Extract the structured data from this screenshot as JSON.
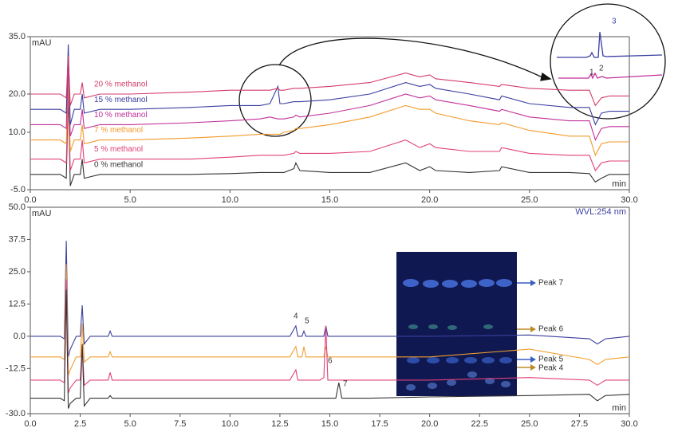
{
  "chart_data": [
    {
      "type": "line",
      "x_label": "min",
      "y_label": "mAU",
      "xlim": [
        0,
        30
      ],
      "ylim": [
        -5,
        35
      ],
      "xticks": [
        {
          "value": 0,
          "label": "0.0"
        },
        {
          "value": 5,
          "label": "5.0"
        },
        {
          "value": 10,
          "label": "10.0"
        },
        {
          "value": 15,
          "label": "15.0"
        },
        {
          "value": 20,
          "label": "20.0"
        },
        {
          "value": 25,
          "label": "25.0"
        },
        {
          "value": 30,
          "label": "30.0"
        }
      ],
      "yticks": [
        {
          "value": -5,
          "label": "-5.0"
        },
        {
          "value": 10,
          "label": "10.0"
        },
        {
          "value": 20,
          "label": "20.0"
        },
        {
          "value": 35,
          "label": "35.0"
        }
      ],
      "legend": "inline",
      "x": [
        0,
        1.5,
        1.8,
        1.9,
        2.0,
        2.2,
        2.5,
        2.6,
        2.7,
        3.5,
        5,
        8,
        10,
        11.5,
        12.0,
        12.4,
        12.5,
        12.7,
        13.2,
        13.3,
        13.5,
        15,
        17,
        18.8,
        19.5,
        20.0,
        20.3,
        22,
        23.5,
        23.6,
        25,
        27,
        28.0,
        28.3,
        28.6,
        29,
        30
      ],
      "series": [
        {
          "name": "0 % methanol",
          "color": "#333333",
          "values": [
            -1,
            -1,
            -2,
            20,
            -4,
            -1,
            -1,
            3,
            -2,
            -1,
            -1,
            -1,
            -0.8,
            -0.5,
            -0.5,
            -0.5,
            -0.5,
            -0.5,
            0.5,
            2,
            0,
            -0.5,
            -0.5,
            2,
            0,
            1,
            0,
            -0.5,
            0,
            1,
            -0.5,
            -0.5,
            -0.8,
            -3,
            -2,
            -1,
            -1
          ]
        },
        {
          "name": "5 % methanol",
          "color": "#e0407a",
          "values": [
            3,
            3,
            2,
            22,
            0,
            3,
            3,
            8,
            2,
            3,
            3,
            3,
            3.5,
            4,
            4,
            4,
            4,
            4,
            4.5,
            5,
            4.5,
            4.5,
            5,
            8,
            6,
            7,
            6,
            5,
            5,
            6,
            4.5,
            4,
            4,
            0,
            2,
            2.5,
            2.5
          ]
        },
        {
          "name": "7 % methanol",
          "color": "#f39a2b",
          "values": [
            8,
            8,
            7,
            25,
            5,
            8,
            8,
            12,
            7,
            8,
            8,
            8.5,
            9,
            9.5,
            9.5,
            9.5,
            9.5,
            10,
            10.5,
            11,
            11,
            12,
            14,
            17,
            16,
            16,
            15,
            13,
            12,
            12.5,
            10.5,
            9,
            9,
            4,
            7,
            7.5,
            7.5
          ]
        },
        {
          "name": "10 % methanol",
          "color": "#c0309a",
          "values": [
            12,
            12,
            11,
            28,
            9,
            12,
            12,
            16,
            11,
            12,
            12,
            12.5,
            13,
            13.5,
            14,
            13.5,
            13.5,
            13.5,
            14,
            14.5,
            14,
            15,
            17,
            20,
            19,
            19.5,
            18.5,
            17,
            15.5,
            16,
            14,
            13,
            13,
            8,
            11,
            11.5,
            11.5
          ]
        },
        {
          "name": "15 % methanol",
          "color": "#3a3fa0",
          "values": [
            16,
            16,
            15,
            33,
            12,
            16,
            16,
            20,
            15,
            16,
            16,
            16.5,
            17,
            17,
            17.5,
            22,
            17.5,
            17.5,
            18,
            18,
            18,
            18.5,
            20,
            23,
            22,
            22.5,
            21.5,
            20,
            18.5,
            19.5,
            17.5,
            16.5,
            16.5,
            12,
            15,
            15.5,
            15.5
          ]
        },
        {
          "name": "20 % methanol",
          "color": "#d43d6a",
          "values": [
            20,
            20,
            19,
            30,
            17,
            20,
            20,
            23,
            19,
            20,
            20,
            20.5,
            21,
            21,
            21,
            21.5,
            21,
            21,
            21.5,
            21.5,
            21.5,
            22,
            23,
            25.5,
            24.5,
            25,
            24,
            23,
            22,
            22.5,
            21.5,
            21,
            21,
            17,
            19,
            19.5,
            19.5
          ]
        }
      ],
      "inset_labels": [
        "1",
        "2",
        "3"
      ]
    },
    {
      "type": "line",
      "x_label": "min",
      "y_label": "mAU",
      "annotation": "WVL:254 nm",
      "xlim": [
        0,
        30
      ],
      "ylim": [
        -30,
        50
      ],
      "xticks": [
        {
          "value": 0,
          "label": "0.0"
        },
        2.5,
        {
          "value": 5,
          "label": "5.0"
        },
        7.5,
        {
          "value": 10,
          "label": "10.0"
        },
        12.5,
        {
          "value": 15,
          "label": "15.0"
        },
        17.5,
        {
          "value": 20,
          "label": "20.0"
        },
        22.5,
        {
          "value": 25,
          "label": "25.0"
        },
        27.5,
        {
          "value": 30,
          "label": "30.0"
        }
      ],
      "yticks": [
        {
          "value": -30,
          "label": "-30.0"
        },
        -12.5,
        {
          "value": 0,
          "label": "0.0"
        },
        12.5,
        {
          "value": 25,
          "label": "25.0"
        },
        37.5,
        {
          "value": 50,
          "label": "50.0"
        }
      ],
      "x": [
        0,
        1.5,
        1.7,
        1.8,
        1.9,
        2.0,
        2.3,
        2.5,
        2.6,
        2.7,
        3.0,
        3.9,
        4.0,
        4.1,
        6,
        10,
        13.0,
        13.3,
        13.4,
        13.6,
        13.7,
        13.8,
        14.5,
        14.7,
        14.8,
        14.9,
        15.0,
        15.3,
        15.45,
        15.6,
        17,
        20,
        25,
        28.0,
        28.4,
        28.8,
        30
      ],
      "series": [
        {
          "color": "#3b3f9a",
          "values": [
            0,
            0,
            -1,
            37,
            -8,
            -5,
            0,
            0,
            12,
            -3,
            0,
            0,
            2,
            0,
            0,
            0,
            0,
            4,
            0,
            0,
            2,
            0,
            0,
            0,
            4,
            0,
            0,
            0,
            0,
            0,
            0,
            0,
            0.5,
            -1,
            -3,
            -1,
            0
          ]
        },
        {
          "color": "#f0a030",
          "values": [
            -8,
            -8,
            -9,
            28,
            -15,
            -13,
            -8,
            -8,
            5,
            -10,
            -8,
            -8,
            -6,
            -8,
            -8,
            -8,
            -8,
            -4,
            -8,
            -8,
            -4,
            -8,
            -8,
            -8,
            -4,
            -8,
            -8,
            -8,
            -8,
            -8,
            -8,
            -8,
            -5,
            -9,
            -11,
            -9,
            -8
          ]
        },
        {
          "color": "#e0407a",
          "values": [
            -17,
            -17,
            -18,
            22,
            -22,
            -20,
            -17,
            -17,
            -3,
            -19,
            -17,
            -17,
            -14,
            -17,
            -17,
            -17,
            -17,
            -13,
            -17,
            -17,
            -17,
            -17,
            -17,
            -16,
            4,
            -17,
            -17,
            -17,
            -17,
            -17,
            -17,
            -17,
            -16,
            -17,
            -19,
            -17,
            -17
          ]
        },
        {
          "color": "#333333",
          "values": [
            -24,
            -24,
            -25,
            18,
            -28,
            -26,
            -24,
            -24,
            -3,
            -27,
            -24,
            -24,
            -23,
            -24,
            -24,
            -24,
            -24,
            -24,
            -24,
            -24,
            -24,
            -24,
            -24,
            -24,
            -24,
            -24,
            -24,
            -24,
            -18,
            -24,
            -24,
            -23.5,
            -23,
            -22.5,
            -25,
            -23,
            -22.5
          ]
        }
      ],
      "peak_labels": [
        "4",
        "5",
        "6",
        "7"
      ],
      "tlc_labels": [
        "Peak 7",
        "Peak 6",
        "Peak 5",
        "Peak 4"
      ]
    }
  ]
}
